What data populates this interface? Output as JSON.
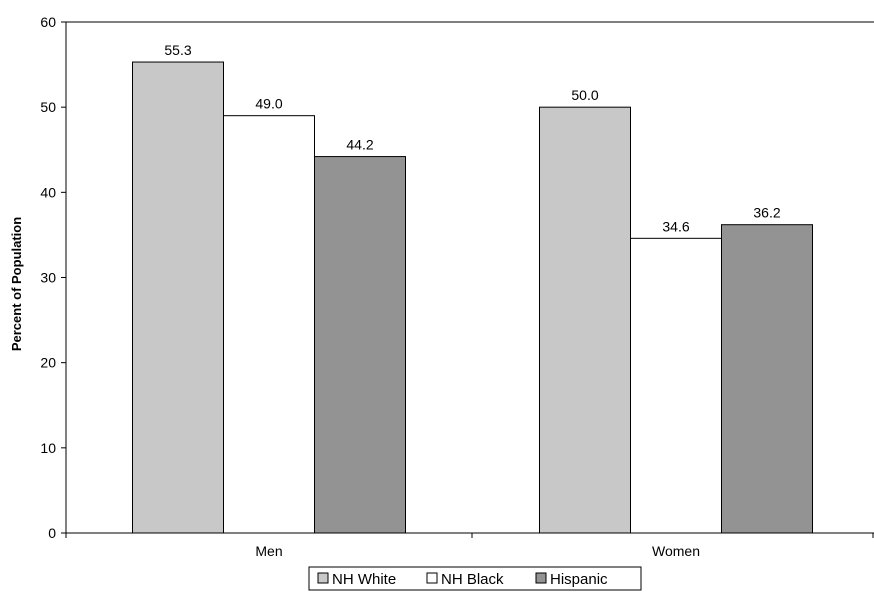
{
  "chart_data": {
    "type": "bar",
    "title": "",
    "xlabel": "",
    "ylabel": "Percent of Population",
    "ylim": [
      0,
      60
    ],
    "yticks": [
      0,
      10,
      20,
      30,
      40,
      50,
      60
    ],
    "categories": [
      "Men",
      "Women"
    ],
    "series": [
      {
        "name": "NH White",
        "values": [
          55.3,
          50.0
        ],
        "labels": [
          "55.3",
          "50.0"
        ],
        "color": "#c8c8c8"
      },
      {
        "name": "NH Black",
        "values": [
          49.0,
          34.6
        ],
        "labels": [
          "49.0",
          "34.6"
        ],
        "color": "#ffffff"
      },
      {
        "name": "Hispanic",
        "values": [
          44.2,
          36.2
        ],
        "labels": [
          "44.2",
          "36.2"
        ],
        "color": "#939393"
      }
    ],
    "grid": false,
    "legend_position": "bottom-center"
  }
}
